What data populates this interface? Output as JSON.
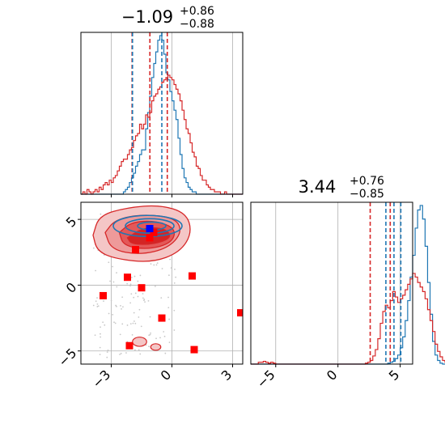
{
  "chart_data": [
    {
      "type": "histogram",
      "panel": "top-left",
      "title": {
        "value": "−1.09",
        "sup": "+0.86",
        "sub": "−0.88"
      },
      "xlim": [
        -4.5,
        3.5
      ],
      "x_ticks": [
        -3,
        0,
        3
      ],
      "grid": true,
      "series": [
        {
          "color": "#1f77b4",
          "bins": {
            "start": -4.5,
            "width": 0.1
          },
          "counts": [
            0,
            0,
            0,
            0,
            0,
            0,
            0,
            0,
            0,
            0,
            0,
            0,
            0,
            0,
            0,
            0,
            0,
            0,
            0,
            0,
            0,
            1,
            2,
            3,
            5,
            7,
            9,
            12,
            14,
            17,
            19,
            19,
            28,
            35,
            42,
            50,
            56,
            61,
            66,
            68,
            66,
            60,
            52,
            49,
            44,
            40,
            36,
            32,
            24,
            17,
            11,
            7,
            5,
            3,
            2,
            1,
            1,
            0,
            0,
            0,
            0,
            0,
            0,
            0,
            0,
            0,
            0,
            0,
            0,
            0,
            0,
            0,
            0,
            0,
            0,
            0,
            0,
            0,
            0,
            0
          ]
        },
        {
          "color": "#d62728",
          "bins": {
            "start": -4.5,
            "width": 0.1
          },
          "counts": [
            0,
            1,
            0,
            2,
            1,
            0,
            1,
            2,
            1,
            3,
            2,
            4,
            5,
            4,
            6,
            5,
            7,
            8,
            10,
            12,
            14,
            15,
            15,
            17,
            19,
            20,
            23,
            25,
            26,
            30,
            28,
            30,
            34,
            33,
            35,
            40,
            42,
            43,
            45,
            46,
            48,
            49,
            50,
            51,
            50,
            49,
            47,
            45,
            43,
            40,
            36,
            32,
            28,
            26,
            22,
            18,
            16,
            12,
            11,
            8,
            6,
            6,
            4,
            3,
            2,
            2,
            1,
            1,
            1,
            0,
            0,
            1,
            0,
            0,
            0,
            0,
            0,
            0,
            0,
            0
          ]
        }
      ],
      "vlines": [
        {
          "color": "#d62728",
          "x": -1.97
        },
        {
          "color": "#1f77b4",
          "x": -1.95
        },
        {
          "color": "#1f77b4",
          "x": -0.5
        },
        {
          "color": "#d62728",
          "x": -1.09
        },
        {
          "color": "#d62728",
          "x": -0.23
        }
      ]
    },
    {
      "type": "histogram",
      "panel": "bottom-right",
      "title": {
        "value": "3.44",
        "sup": "+0.76",
        "sub": "−0.85"
      },
      "xlim": [
        -7,
        6
      ],
      "x_ticks": [
        -5,
        0,
        5
      ],
      "grid": true,
      "series": [
        {
          "color": "#1f77b4",
          "bins": {
            "start": -7,
            "width": 0.2
          },
          "counts": [
            0,
            0,
            0,
            0,
            0,
            0,
            0,
            0,
            0,
            0,
            0,
            0,
            0,
            0,
            0,
            0,
            0,
            0,
            0,
            0,
            0,
            0,
            0,
            0,
            0,
            0,
            0,
            0,
            0,
            0,
            0,
            0,
            0,
            0,
            0,
            0,
            0,
            0,
            0,
            0,
            0,
            0,
            0,
            0,
            0,
            0,
            0,
            0,
            0,
            0,
            0,
            0,
            0,
            0,
            0,
            1,
            2,
            3,
            6,
            10,
            18,
            30,
            48,
            70,
            96,
            120,
            150,
            170,
            175,
            160,
            130,
            90,
            55,
            25,
            10,
            4,
            1,
            0,
            0,
            0,
            0,
            0,
            0,
            0,
            0,
            0,
            0,
            0,
            0,
            0
          ]
        },
        {
          "color": "#d62728",
          "bins": {
            "start": -7,
            "width": 0.2
          },
          "counts": [
            0,
            0,
            0,
            2,
            2,
            3,
            2,
            1,
            2,
            1,
            0,
            0,
            0,
            0,
            0,
            0,
            0,
            0,
            0,
            0,
            0,
            0,
            0,
            0,
            0,
            0,
            0,
            0,
            0,
            0,
            0,
            0,
            0,
            0,
            0,
            0,
            0,
            0,
            0,
            0,
            0,
            0,
            0,
            0,
            0,
            0,
            1,
            2,
            4,
            9,
            16,
            28,
            45,
            58,
            65,
            62,
            70,
            80,
            74,
            68,
            72,
            76,
            82,
            88,
            94,
            100,
            96,
            90,
            85,
            80,
            72,
            60,
            48,
            36,
            22,
            14,
            8,
            4,
            2,
            1,
            0,
            0,
            0,
            0,
            0,
            0,
            0,
            0,
            0,
            0
          ]
        }
      ],
      "vlines": [
        {
          "color": "#d62728",
          "x": 2.59
        },
        {
          "color": "#1f77b4",
          "x": 3.85
        },
        {
          "color": "#d62728",
          "x": 4.2
        },
        {
          "color": "#1f77b4",
          "x": 4.5
        },
        {
          "color": "#1f77b4",
          "x": 5.05
        }
      ]
    },
    {
      "type": "contour",
      "panel": "bottom-left",
      "xlim": [
        -4.5,
        3.5
      ],
      "ylim": [
        -6,
        6.3
      ],
      "x_ticks": [
        -3,
        0,
        3
      ],
      "y_ticks": [
        -5,
        0,
        5
      ],
      "grid": true,
      "red_contour_fills": [
        "#f4c6c6",
        "#ee9a9a",
        "#e35858",
        "#d42424"
      ],
      "blue_contours": "#1f77b4",
      "red_squares": [
        {
          "x": -3.4,
          "y": -0.8
        },
        {
          "x": -2.2,
          "y": 0.6
        },
        {
          "x": -1.5,
          "y": -0.2
        },
        {
          "x": -1.8,
          "y": 2.7
        },
        {
          "x": -1.1,
          "y": 3.6
        },
        {
          "x": -0.9,
          "y": 4.0
        },
        {
          "x": -0.5,
          "y": -2.5
        },
        {
          "x": 1.0,
          "y": 0.7
        },
        {
          "x": 1.1,
          "y": -4.9
        },
        {
          "x": -2.1,
          "y": -4.6
        },
        {
          "x": 3.4,
          "y": -2.1
        }
      ],
      "blue_square": {
        "x": -1.1,
        "y": 4.3
      }
    }
  ]
}
